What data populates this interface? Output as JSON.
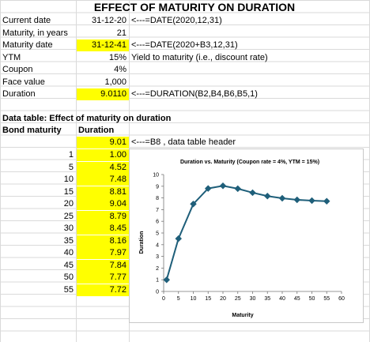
{
  "title": "EFFECT OF MATURITY ON DURATION",
  "rows": [
    {
      "label": "Current date",
      "value": "31-12-20",
      "note": "<---=DATE(2020,12,31)",
      "yellow": false
    },
    {
      "label": "Maturity, in years",
      "value": "21",
      "note": "",
      "yellow": false
    },
    {
      "label": "Maturity date",
      "value": "31-12-41",
      "note": "<---=DATE(2020+B3,12,31)",
      "yellow": true
    },
    {
      "label": "YTM",
      "value": "15%",
      "note": "Yield to maturity (i.e., discount rate)",
      "yellow": false
    },
    {
      "label": "Coupon",
      "value": "4%",
      "note": "",
      "yellow": false
    },
    {
      "label": "Face value",
      "value": "1,000",
      "note": "",
      "yellow": false
    },
    {
      "label": "Duration",
      "value": "9.0110",
      "note": "<---=DURATION(B2,B4,B6,B5,1)",
      "yellow": true
    }
  ],
  "table": {
    "heading": "Data table:  Effect of maturity on duration",
    "col1": "Bond maturity",
    "col2": "Duration",
    "header_value": "9.01",
    "header_note": "<---=B8 , data table header",
    "maturities": [
      "1",
      "5",
      "10",
      "15",
      "20",
      "25",
      "30",
      "35",
      "40",
      "45",
      "50",
      "55"
    ],
    "durations": [
      "1.00",
      "4.52",
      "7.48",
      "8.81",
      "9.04",
      "8.79",
      "8.45",
      "8.16",
      "7.97",
      "7.84",
      "7.77",
      "7.72"
    ]
  },
  "chart_data": {
    "type": "line",
    "title": "Duration vs. Maturity (Coupon rate = 4%, YTM = 15%)",
    "xlabel": "Maturity",
    "ylabel": "Duration",
    "x": [
      1,
      5,
      10,
      15,
      20,
      25,
      30,
      35,
      40,
      45,
      50,
      55
    ],
    "y": [
      1.0,
      4.52,
      7.48,
      8.81,
      9.04,
      8.79,
      8.45,
      8.16,
      7.97,
      7.84,
      7.77,
      7.72
    ],
    "xlim": [
      0,
      60
    ],
    "ylim": [
      0,
      10
    ],
    "xticks": [
      "0",
      "5",
      "10",
      "15",
      "20",
      "25",
      "30",
      "35",
      "40",
      "45",
      "50",
      "55",
      "60"
    ],
    "yticks": [
      "0",
      "1",
      "2",
      "3",
      "4",
      "5",
      "6",
      "7",
      "8",
      "9",
      "10"
    ],
    "grid": false,
    "line_color": "#1f5f7a"
  }
}
